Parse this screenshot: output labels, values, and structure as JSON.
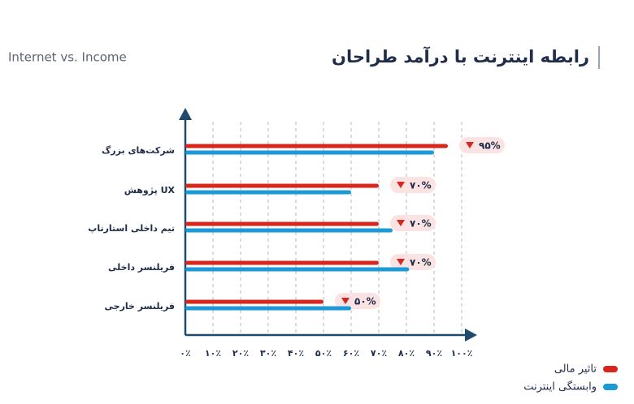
{
  "chart_data": {
    "type": "hbar",
    "title": "رابطه اینترنت با درآمد طراحان",
    "subtitle": "Internet vs. Income",
    "categories": [
      "شرکت‌های بزرگ",
      "پژوهش UX",
      "تیم داخلی استارتاپ",
      "فریلنسر داخلی",
      "فریلنسر خارجی"
    ],
    "series": [
      {
        "name": "تاثیر مالی",
        "color": "#d8261c",
        "values": [
          95,
          70,
          70,
          70,
          50
        ],
        "value_labels": [
          "۹۵%",
          "۷۰%",
          "۷۰%",
          "۷۰%",
          "۵۰%"
        ]
      },
      {
        "name": "وابستگی اینترنت",
        "color": "#1b9ad6",
        "values": [
          90,
          60,
          75,
          81,
          60
        ]
      }
    ],
    "xlim": [
      0,
      100
    ],
    "xticks": [
      {
        "value": 0,
        "label": "۰٪"
      },
      {
        "value": 10,
        "label": "۱۰٪"
      },
      {
        "value": 20,
        "label": "۲۰٪"
      },
      {
        "value": 30,
        "label": "۳۰٪"
      },
      {
        "value": 40,
        "label": "۴۰٪"
      },
      {
        "value": 50,
        "label": "۵۰٪"
      },
      {
        "value": 60,
        "label": "۶۰٪"
      },
      {
        "value": 70,
        "label": "۷۰٪"
      },
      {
        "value": 80,
        "label": "۸۰٪"
      },
      {
        "value": 90,
        "label": "۹۰٪"
      },
      {
        "value": 100,
        "label": "۱۰۰٪"
      }
    ],
    "grid": true,
    "legend": "bottom-right"
  }
}
